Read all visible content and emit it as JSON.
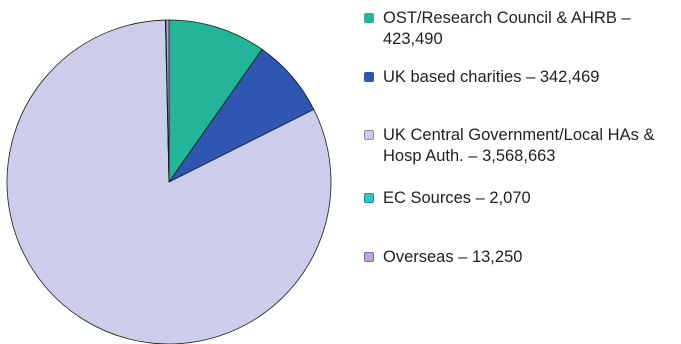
{
  "chart_data": {
    "type": "pie",
    "slices": [
      {
        "label": "OST/Research Council & AHRB – 423,490",
        "value": 423490,
        "color": "#22b59a"
      },
      {
        "label": "UK based charities – 342,469",
        "value": 342469,
        "color": "#2f56b0"
      },
      {
        "label": "UK Central Government/Local HAs & Hosp Auth. – 3,568,663",
        "value": 3568663,
        "color": "#cccceb"
      },
      {
        "label": "EC Sources – 2,070",
        "value": 2070,
        "color": "#35c2c6"
      },
      {
        "label": "Overseas – 13,250",
        "value": 13250,
        "color": "#b9a6da"
      }
    ],
    "legend_position": "right"
  }
}
